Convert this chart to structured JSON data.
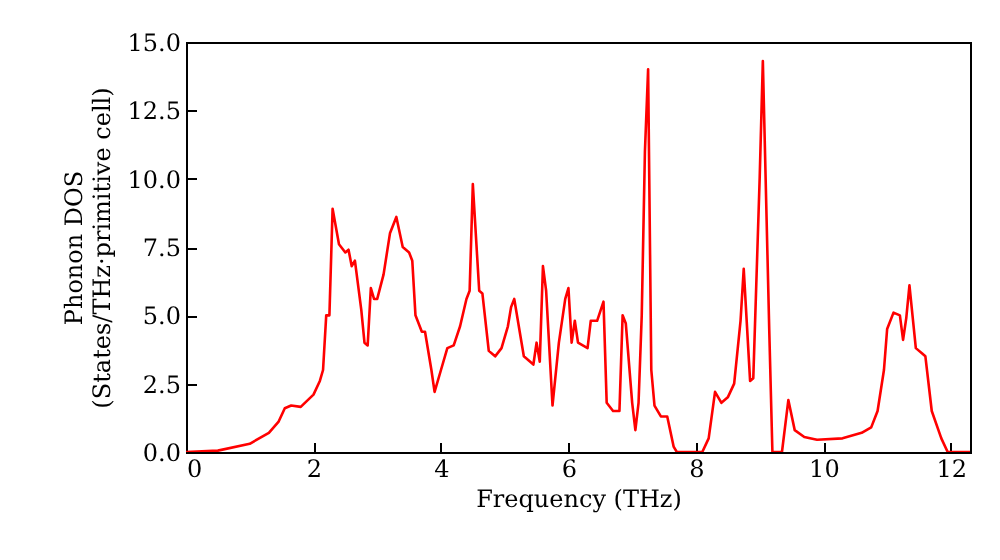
{
  "chart_data": {
    "type": "line",
    "xlabel": "Frequency (THz)",
    "ylabel": "Phonon DOS\n(States/THz·primitive cell)",
    "xlim": [
      0,
      12.3
    ],
    "xticks": [
      0,
      2,
      4,
      6,
      8,
      10,
      12
    ],
    "ylim": [
      0,
      15
    ],
    "yticks": [
      {
        "value": 0,
        "label": "0.0"
      },
      2.5,
      {
        "value": 5,
        "label": "5.0"
      },
      7.5,
      {
        "value": 10,
        "label": "10.0"
      },
      12.5,
      {
        "value": 15,
        "label": "15.0"
      }
    ],
    "grid": false,
    "series": [
      {
        "color": "#ff0000",
        "x": [
          0,
          0.5,
          1.0,
          1.3,
          1.45,
          1.55,
          1.65,
          1.8,
          2.0,
          2.1,
          2.15,
          2.2,
          2.25,
          2.3,
          2.4,
          2.5,
          2.55,
          2.6,
          2.65,
          2.75,
          2.8,
          2.85,
          2.9,
          2.95,
          3.0,
          3.1,
          3.2,
          3.3,
          3.4,
          3.5,
          3.55,
          3.6,
          3.7,
          3.75,
          3.85,
          3.9,
          4.0,
          4.1,
          4.2,
          4.3,
          4.4,
          4.45,
          4.5,
          4.6,
          4.65,
          4.75,
          4.85,
          4.95,
          5.05,
          5.1,
          5.15,
          5.25,
          5.3,
          5.45,
          5.5,
          5.55,
          5.6,
          5.65,
          5.75,
          5.85,
          5.95,
          6.0,
          6.05,
          6.1,
          6.15,
          6.3,
          6.35,
          6.45,
          6.55,
          6.6,
          6.7,
          6.8,
          6.85,
          6.9,
          7.0,
          7.05,
          7.1,
          7.15,
          7.2,
          7.25,
          7.3,
          7.35,
          7.45,
          7.55,
          7.65,
          7.7,
          8.1,
          8.2,
          8.3,
          8.4,
          8.5,
          8.6,
          8.7,
          8.75,
          8.85,
          8.9,
          9.0,
          9.05,
          9.15,
          9.2,
          9.35,
          9.45,
          9.55,
          9.7,
          9.9,
          10.3,
          10.6,
          10.75,
          10.85,
          10.95,
          11.0,
          11.1,
          11.2,
          11.25,
          11.3,
          11.35,
          11.45,
          11.55,
          11.6,
          11.7,
          11.85,
          11.95,
          12.3
        ],
        "values": [
          0,
          0.05,
          0.3,
          0.7,
          1.1,
          1.6,
          1.7,
          1.65,
          2.1,
          2.6,
          3.0,
          5.0,
          5.0,
          8.9,
          7.6,
          7.3,
          7.4,
          6.8,
          7.0,
          5.2,
          4.0,
          3.9,
          6.0,
          5.6,
          5.6,
          6.5,
          8.0,
          8.6,
          7.5,
          7.3,
          7.0,
          5.0,
          4.4,
          4.4,
          3.0,
          2.2,
          3.0,
          3.8,
          3.9,
          4.6,
          5.6,
          5.9,
          9.8,
          5.9,
          5.8,
          3.7,
          3.5,
          3.8,
          4.6,
          5.3,
          5.6,
          4.2,
          3.5,
          3.2,
          4.0,
          3.3,
          6.8,
          5.9,
          1.7,
          4.0,
          5.6,
          6.0,
          4.0,
          4.8,
          4.0,
          3.8,
          4.8,
          4.8,
          5.5,
          1.8,
          1.5,
          1.5,
          5.0,
          4.7,
          1.8,
          0.8,
          1.8,
          5.0,
          11,
          14.0,
          3.0,
          1.7,
          1.3,
          1.3,
          0.2,
          0,
          0,
          0.5,
          2.2,
          1.8,
          2.0,
          2.5,
          4.8,
          6.7,
          2.6,
          2.7,
          10,
          14.3,
          4.5,
          0,
          0,
          1.9,
          0.8,
          0.55,
          0.45,
          0.5,
          0.7,
          0.9,
          1.5,
          3.0,
          4.5,
          5.1,
          5.0,
          4.1,
          4.9,
          6.1,
          3.8,
          3.6,
          3.5,
          1.5,
          0.5,
          0,
          0
        ]
      }
    ]
  }
}
